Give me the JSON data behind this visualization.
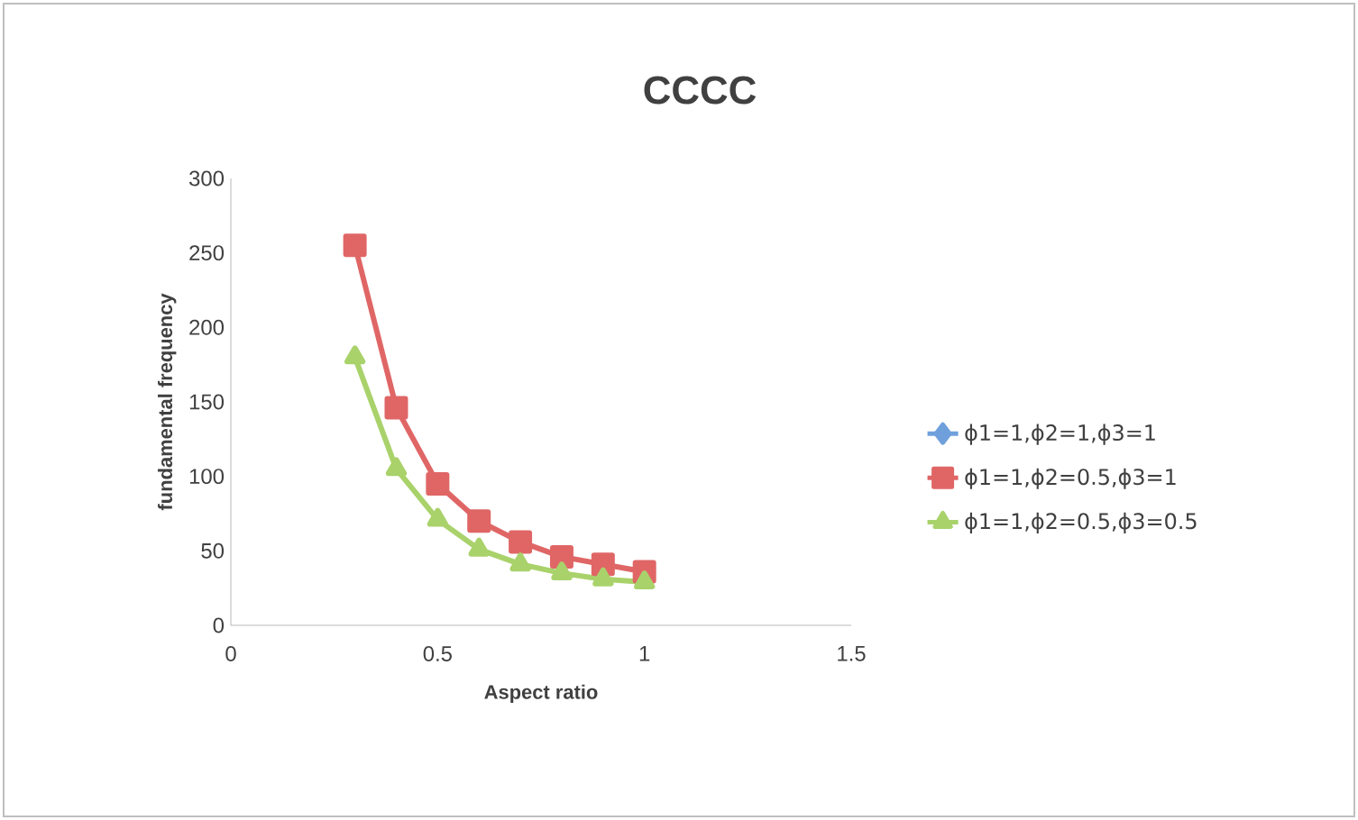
{
  "chart_data": {
    "type": "line",
    "title": "CCCC",
    "xlabel": "Aspect ratio",
    "ylabel": "fundamental frequency",
    "x": [
      0.3,
      0.4,
      0.5,
      0.6,
      0.7,
      0.8,
      0.9,
      1.0
    ],
    "series": [
      {
        "name": "ϕ1=1,ϕ2=1,ϕ3=1",
        "color": "#6fa0dc",
        "marker": "diamond",
        "values": [
          null,
          null,
          null,
          null,
          null,
          null,
          null,
          null
        ]
      },
      {
        "name": "ϕ1=1,ϕ2=0.5,ϕ3=1",
        "color": "#e06666",
        "marker": "square",
        "values": [
          255,
          146,
          95,
          70,
          56,
          46,
          41,
          36
        ]
      },
      {
        "name": "ϕ1=1,ϕ2=0.5,ϕ3=0.5",
        "color": "#a9d26b",
        "marker": "triangle",
        "values": [
          180,
          105,
          71,
          51,
          41,
          35,
          31,
          29
        ]
      }
    ],
    "xlim": [
      0,
      1.5
    ],
    "xticks": [
      0,
      0.5,
      1,
      1.5
    ],
    "ylim": [
      0,
      300
    ],
    "yticks": [
      0,
      50,
      100,
      150,
      200,
      250,
      300
    ],
    "grid": false,
    "legend": "right"
  }
}
